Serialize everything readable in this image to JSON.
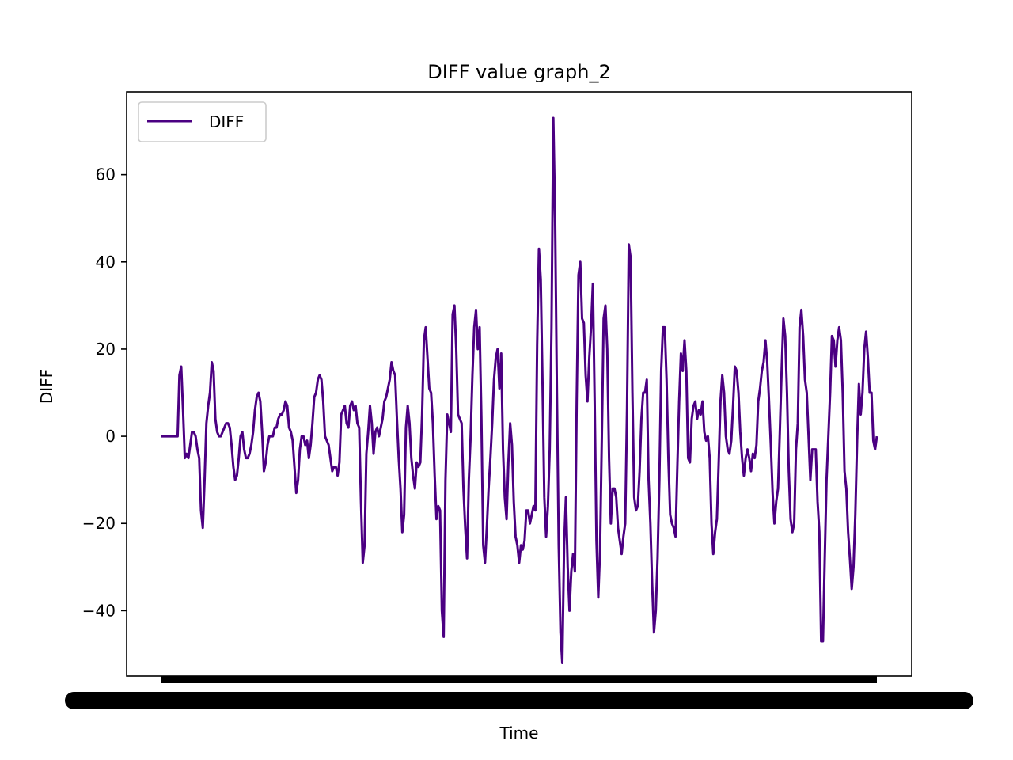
{
  "chart_data": {
    "type": "line",
    "title": "DIFF value graph_2",
    "xlabel": "Time",
    "ylabel": "DIFF",
    "ylim": [
      -55,
      79
    ],
    "yticks": [
      -40,
      -20,
      0,
      20,
      40,
      60
    ],
    "ytick_labels": [
      "−40",
      "−20",
      "0",
      "20",
      "40",
      "60"
    ],
    "xtick_labels_overlapping": true,
    "grid": false,
    "legend_position": "upper-left",
    "series": [
      {
        "name": "DIFF",
        "color": "#4b0082",
        "values": [
          0,
          0,
          0,
          0,
          0,
          0,
          0,
          0,
          0,
          0,
          14,
          16,
          6,
          -5,
          -4,
          -5,
          -2,
          1,
          1,
          0,
          -3,
          -5,
          -17,
          -21,
          -10,
          3,
          7,
          10,
          17,
          15,
          4,
          1,
          0,
          0,
          1,
          2,
          3,
          3,
          2,
          -2,
          -7,
          -10,
          -9,
          -5,
          0,
          1,
          -3,
          -5,
          -5,
          -4,
          -2,
          1,
          6,
          9,
          10,
          8,
          1,
          -8,
          -6,
          -2,
          0,
          0,
          0,
          2,
          2,
          4,
          5,
          5,
          6,
          8,
          7,
          2,
          1,
          -1,
          -7,
          -13,
          -10,
          -3,
          0,
          0,
          -2,
          -1,
          -5,
          -2,
          3,
          9,
          10,
          13,
          14,
          13,
          8,
          0,
          -1,
          -2,
          -5,
          -8,
          -7,
          -7,
          -9,
          -6,
          5,
          6,
          7,
          3,
          2,
          7,
          8,
          6,
          7,
          3,
          2,
          -15,
          -29,
          -25,
          -4,
          1,
          7,
          3,
          -4,
          1,
          2,
          0,
          2,
          4,
          8,
          9,
          11,
          13,
          17,
          15,
          14,
          4,
          -5,
          -12,
          -22,
          -18,
          2,
          7,
          3,
          -5,
          -9,
          -12,
          -6,
          -7,
          -6,
          5,
          22,
          25,
          18,
          11,
          10,
          3,
          -9,
          -19,
          -16,
          -17,
          -40,
          -46,
          -10,
          5,
          3,
          1,
          28,
          30,
          20,
          5,
          4,
          3,
          -12,
          -21,
          -28,
          -10,
          0,
          14,
          25,
          29,
          20,
          25,
          4,
          -25,
          -29,
          -21,
          -12,
          -5,
          3,
          13,
          18,
          20,
          11,
          19,
          -3,
          -14,
          -19,
          -6,
          3,
          -2,
          -15,
          -23,
          -25,
          -29,
          -25,
          -26,
          -24,
          -17,
          -17,
          -20,
          -18,
          -16,
          -17,
          21,
          43,
          36,
          12,
          -14,
          -23,
          -16,
          -3,
          25,
          73,
          50,
          10,
          -25,
          -45,
          -52,
          -25,
          -14,
          -30,
          -40,
          -31,
          -27,
          -31,
          8,
          37,
          40,
          27,
          26,
          14,
          8,
          18,
          25,
          35,
          8,
          -24,
          -37,
          -26,
          0,
          27,
          30,
          20,
          -5,
          -20,
          -12,
          -12,
          -14,
          -21,
          -24,
          -27,
          -23,
          -20,
          6,
          44,
          41,
          10,
          -14,
          -17,
          -16,
          -8,
          4,
          10,
          10,
          13,
          -10,
          -20,
          -34,
          -45,
          -40,
          -28,
          -10,
          15,
          25,
          25,
          13,
          -5,
          -18,
          -20,
          -21,
          -23,
          -7,
          8,
          19,
          15,
          22,
          15,
          -5,
          -6,
          4,
          7,
          8,
          4,
          6,
          5,
          8,
          1,
          -1,
          0,
          -5,
          -20,
          -27,
          -22,
          -19,
          -6,
          8,
          14,
          10,
          0,
          -3,
          -4,
          -1,
          7,
          16,
          15,
          10,
          1,
          -5,
          -9,
          -5,
          -3,
          -5,
          -8,
          -4,
          -5,
          -2,
          8,
          11,
          15,
          17,
          22,
          17,
          8,
          -2,
          -13,
          -20,
          -15,
          -12,
          1,
          15,
          27,
          23,
          10,
          -8,
          -19,
          -22,
          -20,
          -3,
          3,
          25,
          29,
          23,
          13,
          10,
          0,
          -10,
          -3,
          -3,
          -3,
          -15,
          -22,
          -47,
          -47,
          -28,
          -10,
          0,
          10,
          23,
          22,
          16,
          22,
          25,
          22,
          10,
          -8,
          -12,
          -22,
          -28,
          -35,
          -30,
          -18,
          -1,
          12,
          5,
          10,
          20,
          24,
          18,
          10,
          10,
          -1,
          -3,
          0
        ]
      }
    ]
  }
}
